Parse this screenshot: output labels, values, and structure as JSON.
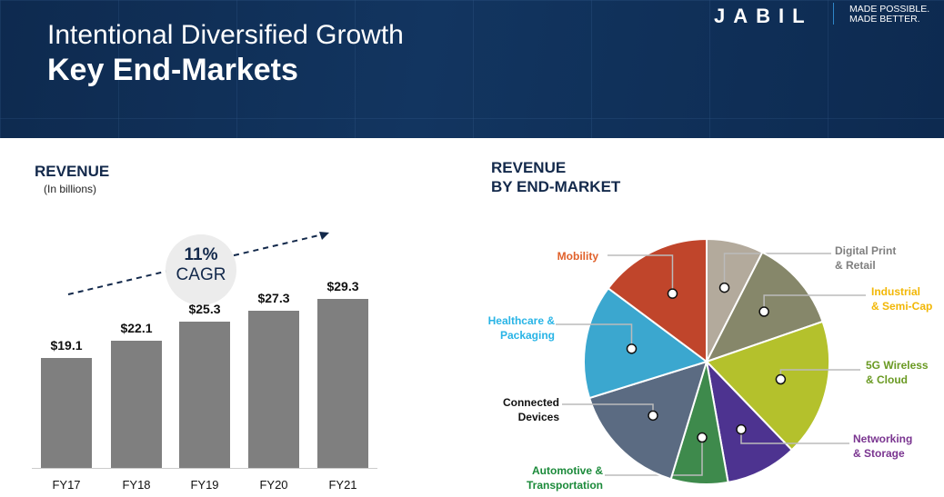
{
  "header": {
    "title_line1": "Intentional Diversified Growth",
    "title_line2": "Key End-Markets",
    "logo": "JABIL",
    "tagline_line1": "MADE POSSIBLE.",
    "tagline_line2": "MADE BETTER."
  },
  "colors": {
    "navy": "#13294b",
    "bar": "#7f7f7f"
  },
  "chart_data": [
    {
      "type": "bar",
      "title": "REVENUE",
      "subtitle": "(In billions)",
      "categories": [
        "FY17",
        "FY18",
        "FY19",
        "FY20",
        "FY21"
      ],
      "values": [
        19.1,
        22.1,
        25.3,
        27.3,
        29.3
      ],
      "data_labels": [
        "$19.1",
        "$22.1",
        "$25.3",
        "$27.3",
        "$29.3"
      ],
      "annotation": {
        "value": "11%",
        "label": "CAGR"
      },
      "ylim": [
        0,
        30
      ]
    },
    {
      "type": "pie",
      "title_line1": "REVENUE",
      "title_line2": "BY END-MARKET",
      "slices": [
        {
          "label1": "Digital Print",
          "label2": "& Retail",
          "share": 7.5,
          "color": "#b3aa9c",
          "text_color": "#7f7f7f"
        },
        {
          "label1": "Industrial",
          "label2": "& Semi-Cap",
          "share": 12.2,
          "color": "#86876a",
          "text_color": "#f2b705"
        },
        {
          "label1": "5G Wireless",
          "label2": "& Cloud",
          "share": 18.1,
          "color": "#b4c12c",
          "text_color": "#6a9a23"
        },
        {
          "label1": "Networking",
          "label2": "& Storage",
          "share": 9.4,
          "color": "#4d3390",
          "text_color": "#7a3590"
        },
        {
          "label1": "Automotive &",
          "label2": "Transportation",
          "share": 7.5,
          "color": "#3e8a4c",
          "text_color": "#1b8a3a"
        },
        {
          "label1": "Connected",
          "label2": "Devices",
          "share": 15.5,
          "color": "#5b6b82",
          "text_color": "#111111"
        },
        {
          "label1": "Healthcare &",
          "label2": "Packaging",
          "share": 15.0,
          "color": "#3ba7cf",
          "text_color": "#28b4e6"
        },
        {
          "label1": "Mobility",
          "label2": "",
          "share": 14.8,
          "color": "#c0452b",
          "text_color": "#e0602a"
        }
      ]
    }
  ]
}
